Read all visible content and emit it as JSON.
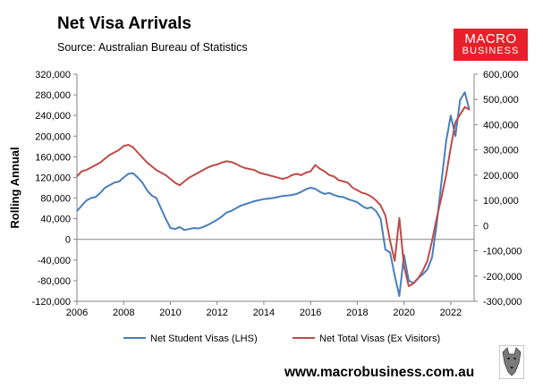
{
  "header": {
    "title": "Net Visa Arrivals",
    "subtitle": "Source: Australian Bureau of Statistics"
  },
  "logo": {
    "line1": "MACRO",
    "line2": "BUSINESS",
    "color": "#e8202a"
  },
  "footer": {
    "url": "www.macrobusiness.com.au"
  },
  "colors": {
    "student": "#4a7ebb",
    "total": "#be4b48"
  },
  "chart_data": {
    "type": "line",
    "ylabel": "Rolling Annual",
    "x_ticks": [
      "2006",
      "2008",
      "2010",
      "2012",
      "2014",
      "2016",
      "2018",
      "2020",
      "2022"
    ],
    "x_range": [
      2006,
      2023
    ],
    "y_left": {
      "range": [
        -120000,
        320000
      ],
      "ticks": [
        "-120,000",
        "-80,000",
        "-40,000",
        "0",
        "40,000",
        "80,000",
        "120,000",
        "160,000",
        "200,000",
        "240,000",
        "280,000",
        "320,000"
      ]
    },
    "y_right": {
      "range": [
        -300000,
        600000
      ],
      "ticks": [
        "-300,000",
        "-200,000",
        "-100,000",
        "0",
        "100,000",
        "200,000",
        "300,000",
        "400,000",
        "500,000",
        "600,000"
      ]
    },
    "legend_position": "bottom",
    "series": [
      {
        "name": "Net Student Visas (LHS)",
        "axis": "left",
        "color": "#4a7ebb",
        "x": [
          2006.0,
          2006.2,
          2006.4,
          2006.6,
          2006.8,
          2007.0,
          2007.2,
          2007.4,
          2007.6,
          2007.8,
          2008.0,
          2008.2,
          2008.4,
          2008.6,
          2008.8,
          2009.0,
          2009.2,
          2009.4,
          2009.6,
          2009.8,
          2010.0,
          2010.2,
          2010.4,
          2010.6,
          2010.8,
          2011.0,
          2011.2,
          2011.4,
          2011.6,
          2011.8,
          2012.0,
          2012.2,
          2012.4,
          2012.6,
          2012.8,
          2013.0,
          2013.2,
          2013.4,
          2013.6,
          2013.8,
          2014.0,
          2014.2,
          2014.4,
          2014.6,
          2014.8,
          2015.0,
          2015.2,
          2015.4,
          2015.6,
          2015.8,
          2016.0,
          2016.2,
          2016.4,
          2016.6,
          2016.8,
          2017.0,
          2017.2,
          2017.4,
          2017.6,
          2017.8,
          2018.0,
          2018.2,
          2018.4,
          2018.6,
          2018.8,
          2019.0,
          2019.2,
          2019.4,
          2019.6,
          2019.8,
          2020.0,
          2020.2,
          2020.4,
          2020.6,
          2020.8,
          2021.0,
          2021.2,
          2021.4,
          2021.6,
          2021.8,
          2022.0,
          2022.2,
          2022.4,
          2022.6,
          2022.8
        ],
        "values": [
          55000,
          65000,
          75000,
          80000,
          82000,
          90000,
          100000,
          105000,
          110000,
          112000,
          120000,
          127000,
          128000,
          120000,
          110000,
          95000,
          85000,
          80000,
          60000,
          40000,
          22000,
          20000,
          24000,
          18000,
          20000,
          22000,
          21000,
          24000,
          28000,
          33000,
          38000,
          44000,
          52000,
          55000,
          60000,
          65000,
          68000,
          71000,
          74000,
          76000,
          78000,
          79000,
          80000,
          82000,
          84000,
          85000,
          86000,
          88000,
          92000,
          97000,
          100000,
          98000,
          92000,
          88000,
          90000,
          86000,
          83000,
          82000,
          78000,
          75000,
          72000,
          65000,
          60000,
          62000,
          55000,
          40000,
          -20000,
          -25000,
          -70000,
          -110000,
          -30000,
          -80000,
          -85000,
          -75000,
          -68000,
          -58000,
          -35000,
          30000,
          110000,
          190000,
          240000,
          200000,
          270000,
          285000,
          250000
        ]
      },
      {
        "name": "Net Total Visas (Ex Visitors)",
        "axis": "right",
        "color": "#be4b48",
        "x": [
          2006.0,
          2006.2,
          2006.4,
          2006.6,
          2006.8,
          2007.0,
          2007.2,
          2007.4,
          2007.6,
          2007.8,
          2008.0,
          2008.2,
          2008.4,
          2008.6,
          2008.8,
          2009.0,
          2009.2,
          2009.4,
          2009.6,
          2009.8,
          2010.0,
          2010.2,
          2010.4,
          2010.6,
          2010.8,
          2011.0,
          2011.2,
          2011.4,
          2011.6,
          2011.8,
          2012.0,
          2012.2,
          2012.4,
          2012.6,
          2012.8,
          2013.0,
          2013.2,
          2013.4,
          2013.6,
          2013.8,
          2014.0,
          2014.2,
          2014.4,
          2014.6,
          2014.8,
          2015.0,
          2015.2,
          2015.4,
          2015.6,
          2015.8,
          2016.0,
          2016.2,
          2016.4,
          2016.6,
          2016.8,
          2017.0,
          2017.2,
          2017.4,
          2017.6,
          2017.8,
          2018.0,
          2018.2,
          2018.4,
          2018.6,
          2018.8,
          2019.0,
          2019.2,
          2019.4,
          2019.6,
          2019.8,
          2020.0,
          2020.2,
          2020.4,
          2020.6,
          2020.8,
          2021.0,
          2021.2,
          2021.4,
          2021.6,
          2021.8,
          2022.0,
          2022.2,
          2022.4,
          2022.6,
          2022.8
        ],
        "values": [
          195000,
          215000,
          220000,
          230000,
          240000,
          250000,
          265000,
          280000,
          290000,
          300000,
          315000,
          320000,
          310000,
          290000,
          270000,
          250000,
          235000,
          220000,
          210000,
          200000,
          185000,
          170000,
          160000,
          175000,
          190000,
          200000,
          210000,
          220000,
          230000,
          238000,
          242000,
          250000,
          255000,
          252000,
          245000,
          235000,
          228000,
          224000,
          220000,
          210000,
          205000,
          200000,
          195000,
          190000,
          185000,
          190000,
          200000,
          205000,
          200000,
          210000,
          215000,
          240000,
          225000,
          215000,
          200000,
          195000,
          180000,
          175000,
          170000,
          150000,
          140000,
          130000,
          125000,
          115000,
          100000,
          80000,
          40000,
          -60000,
          -140000,
          30000,
          -160000,
          -240000,
          -230000,
          -210000,
          -180000,
          -140000,
          -60000,
          30000,
          110000,
          200000,
          310000,
          410000,
          440000,
          470000,
          460000
        ]
      }
    ]
  }
}
